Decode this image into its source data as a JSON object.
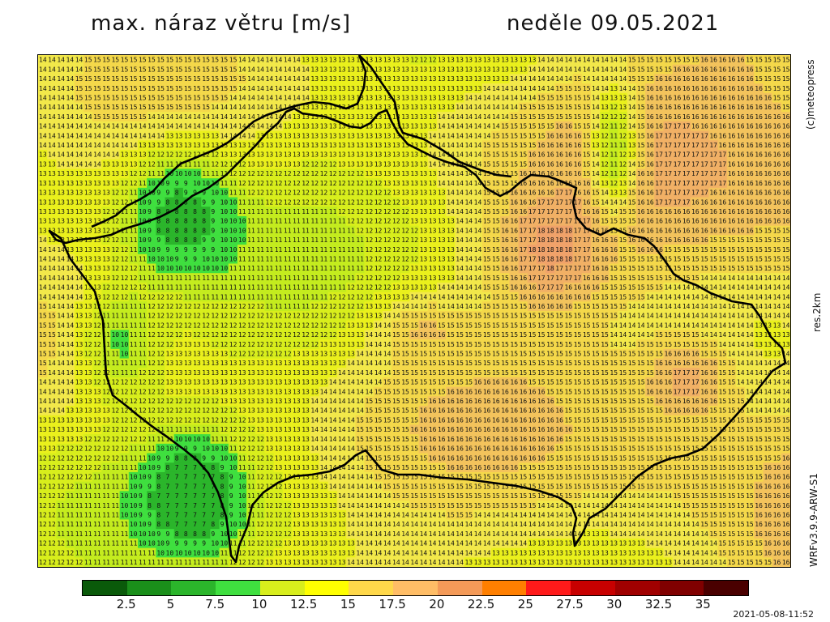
{
  "header": {
    "title": "max. náraz větru [m/s]",
    "date": "neděle 09.05.2021"
  },
  "side_labels": {
    "copyright": "(c)meteopress",
    "resolution": "res.2km",
    "model": "WRFv3.9.9-ARW-S1"
  },
  "legend": {
    "colors": [
      "#0a5a0a",
      "#1a8f1a",
      "#2bb52b",
      "#3fdf3f",
      "#d8ee1c",
      "#ffff00",
      "#ffd84a",
      "#ffbd66",
      "#f49a58",
      "#ff7f00",
      "#ff1a1a",
      "#c80000",
      "#a00000",
      "#800000",
      "#4a0000"
    ],
    "ticks": [
      "2.5",
      "5",
      "7.5",
      "10",
      "12.5",
      "15",
      "17.5",
      "20",
      "22.5",
      "25",
      "27.5",
      "30",
      "32.5",
      "35"
    ]
  },
  "map": {
    "grid_cols": 83,
    "grid_rows": 54,
    "value_colors": {
      "7": "#2bb52b",
      "8": "#2bb52b",
      "9": "#3fdf3f",
      "10": "#3fdf3f",
      "11": "#c4ec1e",
      "12": "#d8ee1c",
      "13": "#eaf01c",
      "14": "#f2e84a",
      "15": "#f4d84a",
      "16": "#f3c35c",
      "17": "#f1b065",
      "18": "#f0a26a",
      "19": "#ee9a6a",
      "20": "#ec926a"
    }
  },
  "timestamp": "2021-05-08-11:52"
}
